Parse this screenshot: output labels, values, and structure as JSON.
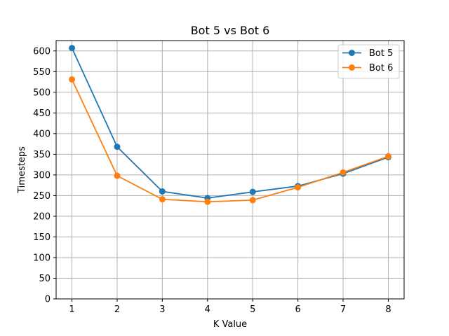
{
  "chart_data": {
    "type": "line",
    "title": "Bot 5 vs Bot 6",
    "xlabel": "K Value",
    "ylabel": "Timesteps",
    "x": [
      1,
      2,
      3,
      4,
      5,
      6,
      7,
      8
    ],
    "xlim": [
      0.65,
      8.35
    ],
    "ylim": [
      0,
      625
    ],
    "xticks": [
      "1",
      "2",
      "3",
      "4",
      "5",
      "6",
      "7",
      "8"
    ],
    "yticks": [
      "0",
      "50",
      "100",
      "150",
      "200",
      "250",
      "300",
      "350",
      "400",
      "450",
      "500",
      "550",
      "600"
    ],
    "grid": true,
    "legend_position": "top-right",
    "series": [
      {
        "name": "Bot 5",
        "color": "#1f77b4",
        "marker": "circle",
        "values": [
          607,
          368,
          260,
          244,
          259,
          273,
          303,
          343
        ]
      },
      {
        "name": "Bot 6",
        "color": "#ff7f0e",
        "marker": "circle",
        "values": [
          531,
          298,
          241,
          235,
          239,
          270,
          306,
          345
        ]
      }
    ]
  }
}
